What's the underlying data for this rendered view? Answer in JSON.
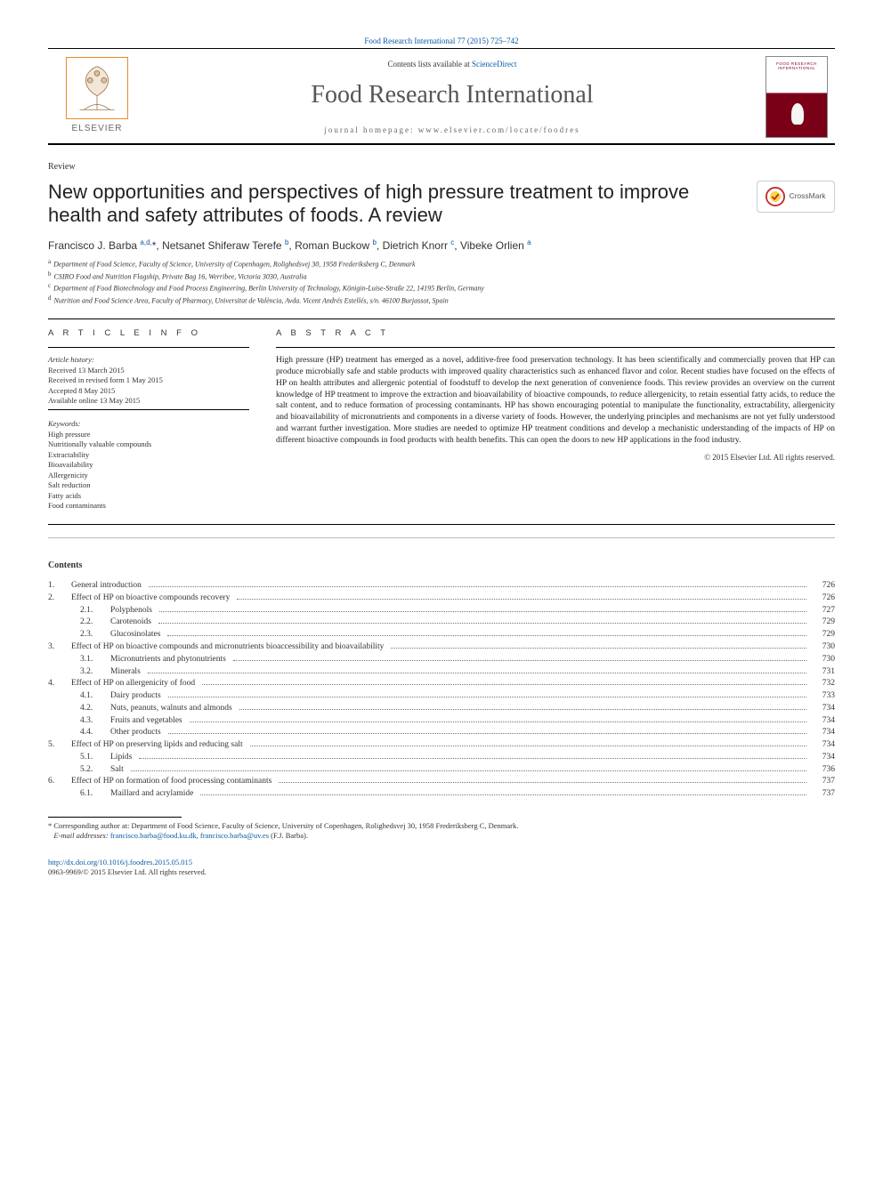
{
  "header": {
    "citation": "Food Research International 77 (2015) 725–742",
    "contents_avail_prefix": "Contents lists available at ",
    "contents_avail_link": "ScienceDirect",
    "journal": "Food Research International",
    "homepage_label": "journal homepage: www.elsevier.com/locate/foodres",
    "publisher": "ELSEVIER",
    "cover_title": "FOOD RESEARCH INTERNATIONAL"
  },
  "article": {
    "type": "Review",
    "title": "New opportunities and perspectives of high pressure treatment to improve health and safety attributes of foods. A review",
    "crossmark": "CrossMark"
  },
  "authors": [
    {
      "name": "Francisco J. Barba",
      "aff": "a,d,",
      "star": "*"
    },
    {
      "name": "Netsanet Shiferaw Terefe",
      "aff": "b"
    },
    {
      "name": "Roman Buckow",
      "aff": "b"
    },
    {
      "name": "Dietrich Knorr",
      "aff": "c"
    },
    {
      "name": "Vibeke Orlien",
      "aff": "a"
    }
  ],
  "affiliations": {
    "a": "Department of Food Science, Faculty of Science, University of Copenhagen, Rolighedsvej 30, 1958 Frederiksberg C, Denmark",
    "b": "CSIRO Food and Nutrition Flagship, Private Bag 16, Werribee, Victoria 3030, Australia",
    "c": "Department of Food Biotechnology and Food Process Engineering, Berlin University of Technology, Königin-Luise-Straße 22, 14195 Berlin, Germany",
    "d": "Nutrition and Food Science Area, Faculty of Pharmacy, Universitat de València, Avda. Vicent Andrés Estellés, s/n. 46100 Burjassot, Spain"
  },
  "info": {
    "head": "A R T I C L E   I N F O",
    "history_head": "Article history:",
    "received": "Received 13 March 2015",
    "revised": "Received in revised form 1 May 2015",
    "accepted": "Accepted 8 May 2015",
    "online": "Available online 13 May 2015",
    "keywords_head": "Keywords:",
    "keywords": [
      "High pressure",
      "Nutritionally valuable compounds",
      "Extractability",
      "Bioavailability",
      "Allergenicity",
      "Salt reduction",
      "Fatty acids",
      "Food contaminants"
    ]
  },
  "abstract": {
    "head": "A B S T R A C T",
    "text": "High pressure (HP) treatment has emerged as a novel, additive-free food preservation technology. It has been scientifically and commercially proven that HP can produce microbially safe and stable products with improved quality characteristics such as enhanced flavor and color. Recent studies have focused on the effects of HP on health attributes and allergenic potential of foodstuff to develop the next generation of convenience foods. This review provides an overview on the current knowledge of HP treatment to improve the extraction and bioavailability of bioactive compounds, to reduce allergenicity, to retain essential fatty acids, to reduce the salt content, and to reduce formation of processing contaminants. HP has shown encouraging potential to manipulate the functionality, extractability, allergenicity and bioavailability of micronutrients and components in a diverse variety of foods. However, the underlying principles and mechanisms are not yet fully understood and warrant further investigation. More studies are needed to optimize HP treatment conditions and develop a mechanistic understanding of the impacts of HP on different bioactive compounds in food products with health benefits. This can open the doors to new HP applications in the food industry.",
    "copyright": "© 2015 Elsevier Ltd. All rights reserved."
  },
  "toc": {
    "head": "Contents",
    "rows": [
      {
        "num": "1.",
        "label": "General introduction",
        "page": "726",
        "level": 1
      },
      {
        "num": "2.",
        "label": "Effect of HP on bioactive compounds recovery",
        "page": "726",
        "level": 1
      },
      {
        "num": "2.1.",
        "label": "Polyphenols",
        "page": "727",
        "level": 2
      },
      {
        "num": "2.2.",
        "label": "Carotenoids",
        "page": "729",
        "level": 2
      },
      {
        "num": "2.3.",
        "label": "Glucosinolates",
        "page": "729",
        "level": 2
      },
      {
        "num": "3.",
        "label": "Effect of HP on bioactive compounds and micronutrients bioaccessibility and bioavailability",
        "page": "730",
        "level": 1
      },
      {
        "num": "3.1.",
        "label": "Micronutrients and phytonutrients",
        "page": "730",
        "level": 2
      },
      {
        "num": "3.2.",
        "label": "Minerals",
        "page": "731",
        "level": 2
      },
      {
        "num": "4.",
        "label": "Effect of HP on allergenicity of food",
        "page": "732",
        "level": 1
      },
      {
        "num": "4.1.",
        "label": "Dairy products",
        "page": "733",
        "level": 2
      },
      {
        "num": "4.2.",
        "label": "Nuts, peanuts, walnuts and almonds",
        "page": "734",
        "level": 2
      },
      {
        "num": "4.3.",
        "label": "Fruits and vegetables",
        "page": "734",
        "level": 2
      },
      {
        "num": "4.4.",
        "label": "Other products",
        "page": "734",
        "level": 2
      },
      {
        "num": "5.",
        "label": "Effect of HP on preserving lipids and reducing salt",
        "page": "734",
        "level": 1
      },
      {
        "num": "5.1.",
        "label": "Lipids",
        "page": "734",
        "level": 2
      },
      {
        "num": "5.2.",
        "label": "Salt",
        "page": "736",
        "level": 2
      },
      {
        "num": "6.",
        "label": "Effect of HP on formation of food processing contaminants",
        "page": "737",
        "level": 1
      },
      {
        "num": "6.1.",
        "label": "Maillard and acrylamide",
        "page": "737",
        "level": 2
      }
    ]
  },
  "footnote": {
    "corresponding": "Corresponding author at: Department of Food Science, Faculty of Science, University of Copenhagen, Rolighedsvej 30, 1958 Frederiksberg C, Denmark.",
    "email_label": "E-mail addresses:",
    "emails": "francisco.barba@food.ku.dk, francisco.barba@uv.es",
    "email_suffix": "(F.J. Barba)."
  },
  "doi": {
    "url": "http://dx.doi.org/10.1016/j.foodres.2015.05.015",
    "issn_line": "0963-9969/© 2015 Elsevier Ltd. All rights reserved."
  },
  "colors": {
    "link": "#0b5aa5",
    "elsevier_orange": "#e88a2e",
    "cover_maroon": "#7a0018",
    "crossmark_outer": "#c62828",
    "crossmark_inner": "#f9d84a"
  }
}
